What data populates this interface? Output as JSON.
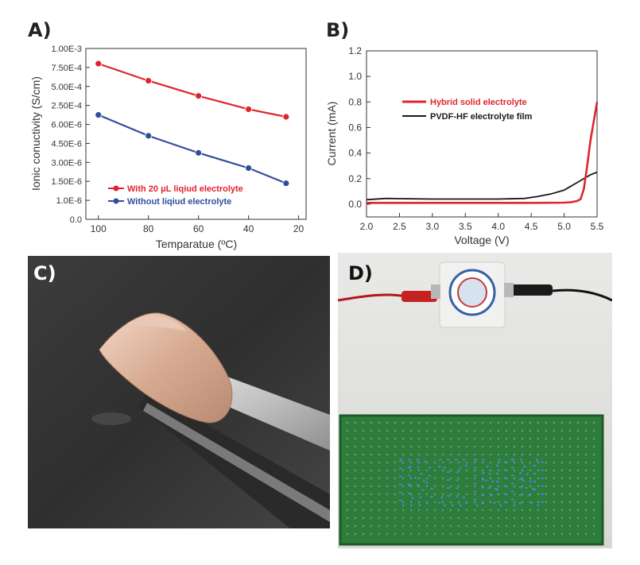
{
  "panels": {
    "a": "A)",
    "b": "B)",
    "c": "C)",
    "d": "D)"
  },
  "chart_data": [
    {
      "type": "line",
      "xlabel": "Temparatue (ºC)",
      "ylabel": "Ionic conuctivity (S/cm)",
      "x_ticks": [
        "100",
        "80",
        "60",
        "40",
        "20"
      ],
      "xlim": [
        105,
        17
      ],
      "y_ticks": [
        "0.0",
        "1.0E-6",
        "1.50E-6",
        "3.00E-6",
        "4.50E-6",
        "6.00E-6",
        "2.50E-4",
        "5.00E-4",
        "7.50E-4",
        "1.00E-3"
      ],
      "ylim_index": [
        0,
        9
      ],
      "series": [
        {
          "name": "With 20 μL liqiud electrolyte",
          "color": "#e0242e",
          "x": [
            100,
            80,
            60,
            40,
            25
          ],
          "y_index": [
            8.2,
            7.3,
            6.5,
            5.8,
            5.4
          ]
        },
        {
          "name": "Without liqiud electrolyte",
          "color": "#2f4e9c",
          "x": [
            100,
            80,
            60,
            40,
            25
          ],
          "y_index": [
            5.5,
            4.4,
            3.5,
            2.7,
            1.9
          ]
        }
      ],
      "legend_position": "lower-left"
    },
    {
      "type": "line",
      "xlabel": "Voltage (V)",
      "ylabel": "Current (mA)",
      "x_ticks": [
        "2.0",
        "2.5",
        "3.0",
        "3.5",
        "4.0",
        "4.5",
        "5.0",
        "5.5"
      ],
      "xlim": [
        2.0,
        5.5
      ],
      "y_ticks": [
        "0.0",
        "0.2",
        "0.4",
        "0.6",
        "0.8",
        "1.0",
        "1.2"
      ],
      "ylim": [
        -0.1,
        1.2
      ],
      "series": [
        {
          "name": "Hybrid solid electrolyte",
          "color": "#e0242e",
          "x": [
            2.0,
            2.5,
            3.0,
            3.5,
            4.0,
            4.5,
            5.0,
            5.1,
            5.2,
            5.25,
            5.3,
            5.35,
            5.4,
            5.45,
            5.5
          ],
          "y": [
            0.01,
            0.01,
            0.01,
            0.01,
            0.01,
            0.01,
            0.012,
            0.015,
            0.025,
            0.04,
            0.12,
            0.3,
            0.5,
            0.65,
            0.8
          ]
        },
        {
          "name": "PVDF-HF electrolyte film",
          "color": "#1a1a1a",
          "x": [
            2.0,
            2.3,
            2.5,
            3.0,
            3.5,
            4.0,
            4.4,
            4.6,
            4.8,
            5.0,
            5.1,
            5.2,
            5.3,
            5.4,
            5.5
          ],
          "y": [
            0.035,
            0.045,
            0.043,
            0.04,
            0.04,
            0.04,
            0.045,
            0.06,
            0.08,
            0.11,
            0.14,
            0.17,
            0.2,
            0.23,
            0.25
          ]
        }
      ],
      "legend_position": "upper-left"
    }
  ],
  "photo_d": {
    "sign_text": "BINN"
  }
}
